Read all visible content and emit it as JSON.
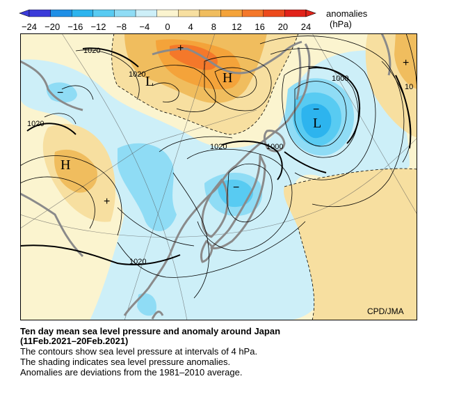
{
  "legend": {
    "title": "anomalies",
    "unit": "(hPa)",
    "ticks": [
      "−24",
      "−20",
      "−16",
      "−12",
      "−8",
      "−4",
      "0",
      "4",
      "8",
      "12",
      "16",
      "20",
      "24"
    ],
    "colors": [
      "#3b3bd9",
      "#1f8fe6",
      "#2db4ee",
      "#58cbf2",
      "#8fdcf5",
      "#cdeff8",
      "#fbf4cf",
      "#f7dfa0",
      "#f0bd5e",
      "#f4a33a",
      "#f4782a",
      "#ec4a1c",
      "#e1231a"
    ]
  },
  "map": {
    "contour_labels": [
      "1020",
      "1020",
      "1020",
      "1000",
      "1000",
      "1020",
      "1020",
      "1020"
    ],
    "label_continued": "10",
    "high_symbol": "H",
    "low_symbol": "L",
    "plus_sign": "+",
    "minus_sign": "−",
    "credit": "CPD/JMA",
    "colors": {
      "land": "#9a9a9a",
      "contour": "#000000",
      "warm": "#f7dfa0",
      "cold": "#cdeff8"
    }
  },
  "caption": {
    "title_line1": "Ten day mean sea level pressure and anomaly around Japan",
    "title_line2": "(11Feb.2021–20Feb.2021)",
    "line1": "The contours show sea level pressure at intervals of 4 hPa.",
    "line2": "The shading indicates sea level pressure anomalies.",
    "line3": "Anomalies are deviations from the 1981–2010 average."
  }
}
